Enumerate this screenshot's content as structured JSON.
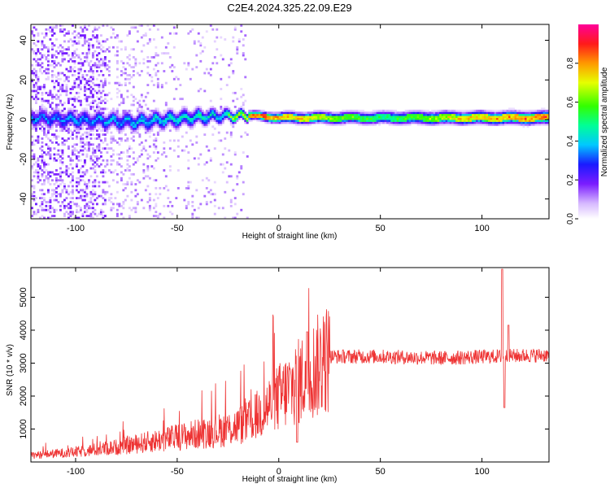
{
  "figure_title": "C2E4.2024.325.22.09.E29",
  "chart_data": [
    {
      "type": "heatmap",
      "title": "C2E4.2024.325.22.09.E29",
      "xlabel": "Height of straight line (km)",
      "ylabel": "Frequency (Hz)",
      "xlim": [
        -122,
        133
      ],
      "ylim": [
        -50,
        48
      ],
      "xticks": [
        -100,
        -50,
        0,
        50,
        100
      ],
      "yticks": [
        -40,
        -20,
        0,
        20,
        40
      ],
      "colorbar": {
        "label": "Normalized spectral amplitude",
        "range": [
          0,
          1
        ],
        "ticks": [
          "0.0",
          "0.2",
          "0.4",
          "0.6",
          "0.8"
        ],
        "colormap": "rainbow-violet-to-magenta"
      },
      "band": {
        "description_points": [
          {
            "x": -122,
            "center": 1,
            "halfwidth": 4,
            "amp": 0.35
          },
          {
            "x": -100,
            "center": 0,
            "halfwidth": 4,
            "amp": 0.35
          },
          {
            "x": -70,
            "center": -1,
            "halfwidth": 4,
            "amp": 0.4
          },
          {
            "x": -45,
            "center": 1,
            "halfwidth": 4,
            "amp": 0.45
          },
          {
            "x": -30,
            "center": 2,
            "halfwidth": 3,
            "amp": 0.45
          },
          {
            "x": -12,
            "center": 2,
            "halfwidth": 2,
            "amp": 0.9
          },
          {
            "x": 0,
            "center": 1,
            "halfwidth": 2.5,
            "amp": 0.8
          },
          {
            "x": 50,
            "center": 1,
            "halfwidth": 3,
            "amp": 0.5
          },
          {
            "x": 95,
            "center": 1,
            "halfwidth": 3,
            "amp": 0.75
          },
          {
            "x": 133,
            "center": 1,
            "halfwidth": 3,
            "amp": 0.85
          }
        ]
      }
    },
    {
      "type": "line",
      "xlabel": "Height of straight line (km)",
      "ylabel": "SNR (10 * v/v)",
      "xlim": [
        -122,
        133
      ],
      "ylim": [
        0,
        5900
      ],
      "xticks": [
        -100,
        -50,
        0,
        50,
        100
      ],
      "yticks": [
        1000,
        2000,
        3000,
        4000,
        5000
      ],
      "color": "#ee3333",
      "trend": [
        {
          "x": -122,
          "y": 200
        },
        {
          "x": -100,
          "y": 300
        },
        {
          "x": -80,
          "y": 450
        },
        {
          "x": -60,
          "y": 650
        },
        {
          "x": -40,
          "y": 850
        },
        {
          "x": -25,
          "y": 1000
        },
        {
          "x": -15,
          "y": 1200
        },
        {
          "x": -5,
          "y": 1700
        },
        {
          "x": 5,
          "y": 2200
        },
        {
          "x": 15,
          "y": 2700
        },
        {
          "x": 25,
          "y": 3200
        },
        {
          "x": 50,
          "y": 3200
        },
        {
          "x": 80,
          "y": 3150
        },
        {
          "x": 105,
          "y": 3200
        },
        {
          "x": 133,
          "y": 3250
        }
      ],
      "spikes": [
        {
          "x": -12,
          "y": 4300
        },
        {
          "x": -12,
          "y": 1150
        },
        {
          "x": 14,
          "y": 3950
        },
        {
          "x": 9,
          "y": 600
        },
        {
          "x": 110,
          "y": 5850
        },
        {
          "x": 111,
          "y": 1650
        },
        {
          "x": 113,
          "y": 4150
        }
      ]
    }
  ]
}
